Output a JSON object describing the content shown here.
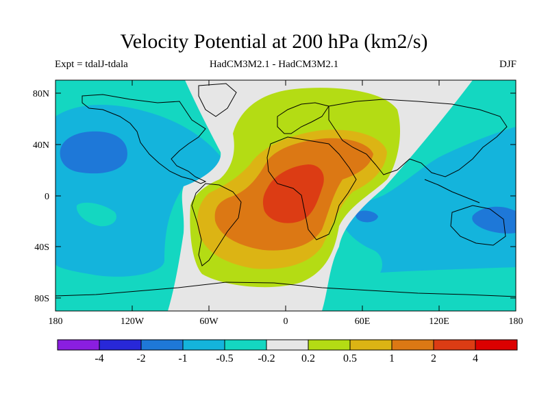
{
  "header": {
    "title": "Velocity Potential at 200 hPa (km2/s)",
    "subtitle_left": "Expt = tdalJ-tdala",
    "subtitle_center": "HadCM3M2.1 - HadCM3M2.1",
    "subtitle_right": "DJF"
  },
  "map": {
    "lat_labels": [
      "80N",
      "40N",
      "0",
      "40S",
      "80S"
    ],
    "lon_labels": [
      "180",
      "120W",
      "60W",
      "0",
      "60E",
      "120E",
      "180"
    ]
  },
  "colorbar": {
    "labels": [
      "-4",
      "-2",
      "-1",
      "-0.5",
      "-0.2",
      "0.2",
      "0.5",
      "1",
      "2",
      "4"
    ],
    "colors": [
      "#8a1ee0",
      "#2828d8",
      "#1e78d8",
      "#14b4dc",
      "#14d7c1",
      "#e6e6e6",
      "#b4dc14",
      "#dcb414",
      "#dc7814",
      "#dc3c14",
      "#dc0000"
    ]
  }
}
